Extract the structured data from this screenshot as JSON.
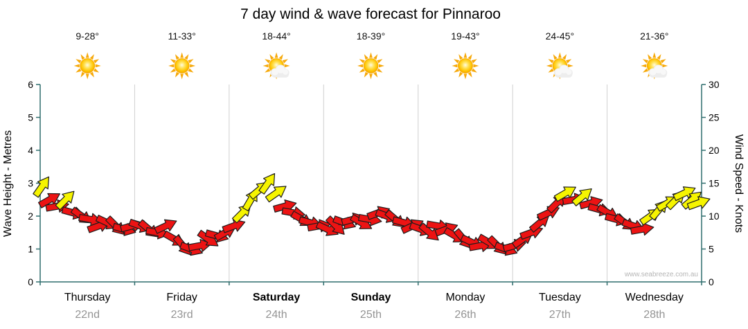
{
  "title": "7 day wind & wave forecast for Pinnaroo",
  "watermark": "www.seabreeze.com.au",
  "colors": {
    "axis": "#2e6d6d",
    "grid": "#cfcfcf",
    "arrow_red": "#ec1313",
    "arrow_yellow": "#f6f400",
    "arrow_outline": "#1c1c1c",
    "sun_ray": "#f6a90b",
    "cloud": "#ededed",
    "date_text": "#949494",
    "watermark_text": "#b5b5b5"
  },
  "axes": {
    "left_label": "Wave Height - Metres",
    "right_label": "Wind Speed - Knots",
    "left_ticks": [
      0,
      1,
      2,
      3,
      4,
      5,
      6
    ],
    "right_ticks": [
      0,
      5,
      10,
      15,
      20,
      25,
      30
    ]
  },
  "days": [
    {
      "name": "Thursday",
      "date": "22nd",
      "temp": "9-28°",
      "icon": "sunny",
      "bold": false
    },
    {
      "name": "Friday",
      "date": "23rd",
      "temp": "11-33°",
      "icon": "sunny",
      "bold": false
    },
    {
      "name": "Saturday",
      "date": "24th",
      "temp": "18-44°",
      "icon": "partly-cloudy",
      "bold": true
    },
    {
      "name": "Sunday",
      "date": "25th",
      "temp": "18-39°",
      "icon": "sunny",
      "bold": true
    },
    {
      "name": "Monday",
      "date": "26th",
      "temp": "19-43°",
      "icon": "sunny",
      "bold": false
    },
    {
      "name": "Tuesday",
      "date": "27th",
      "temp": "24-45°",
      "icon": "partly-cloudy",
      "bold": false
    },
    {
      "name": "Wednesday",
      "date": "28th",
      "temp": "21-36°",
      "icon": "partly-cloudy",
      "bold": false
    }
  ],
  "chart_data": {
    "type": "scatter",
    "marker": "wind-arrow",
    "title": "7 day wind & wave forecast for Pinnaroo",
    "x_categories": [
      "Thursday 22nd",
      "Friday 23rd",
      "Saturday 24th",
      "Sunday 25th",
      "Monday 26th",
      "Tuesday 27th",
      "Wednesday 28th"
    ],
    "xlabel": "",
    "ylabel_left": "Wave Height - Metres",
    "ylabel_right": "Wind Speed - Knots",
    "ylim_left": [
      0,
      6
    ],
    "ylim_right": [
      0,
      30
    ],
    "grid": "vertical-day-boundaries",
    "point_format": [
      "day_offset",
      "wind_knots",
      "arrow_angle_deg",
      "color"
    ],
    "points": [
      [
        0.02,
        14.5,
        -55,
        "yellow"
      ],
      [
        0.1,
        12.5,
        -30,
        "red"
      ],
      [
        0.18,
        11.5,
        -10,
        "red"
      ],
      [
        0.27,
        12.5,
        -45,
        "yellow"
      ],
      [
        0.35,
        10.5,
        15,
        "red"
      ],
      [
        0.44,
        10.0,
        35,
        "red"
      ],
      [
        0.53,
        9.5,
        10,
        "red"
      ],
      [
        0.62,
        8.5,
        -20,
        "red"
      ],
      [
        0.71,
        9.0,
        25,
        "red"
      ],
      [
        0.8,
        8.5,
        45,
        "red"
      ],
      [
        0.89,
        8.0,
        15,
        "red"
      ],
      [
        0.97,
        8.5,
        -15,
        "red"
      ],
      [
        1.06,
        8.5,
        20,
        "red"
      ],
      [
        1.15,
        8.0,
        40,
        "red"
      ],
      [
        1.24,
        7.5,
        10,
        "red"
      ],
      [
        1.33,
        8.5,
        -25,
        "red"
      ],
      [
        1.42,
        6.5,
        30,
        "red"
      ],
      [
        1.51,
        5.5,
        50,
        "red"
      ],
      [
        1.6,
        5.0,
        20,
        "red"
      ],
      [
        1.69,
        5.5,
        -10,
        "red"
      ],
      [
        1.78,
        6.5,
        35,
        "red"
      ],
      [
        1.87,
        7.0,
        15,
        "red"
      ],
      [
        1.96,
        7.5,
        -30,
        "red"
      ],
      [
        2.05,
        8.5,
        -20,
        "red"
      ],
      [
        2.14,
        10.5,
        -45,
        "yellow"
      ],
      [
        2.23,
        12.5,
        -60,
        "yellow"
      ],
      [
        2.32,
        14.0,
        -40,
        "yellow"
      ],
      [
        2.41,
        15.0,
        -55,
        "yellow"
      ],
      [
        2.5,
        13.5,
        -35,
        "yellow"
      ],
      [
        2.59,
        11.5,
        -15,
        "red"
      ],
      [
        2.68,
        10.5,
        10,
        "red"
      ],
      [
        2.77,
        9.5,
        30,
        "red"
      ],
      [
        2.86,
        9.0,
        15,
        "red"
      ],
      [
        2.95,
        8.5,
        -10,
        "red"
      ],
      [
        3.04,
        8.0,
        25,
        "red"
      ],
      [
        3.13,
        8.5,
        45,
        "red"
      ],
      [
        3.22,
        9.0,
        20,
        "red"
      ],
      [
        3.31,
        9.5,
        -15,
        "red"
      ],
      [
        3.4,
        9.0,
        30,
        "red"
      ],
      [
        3.49,
        9.5,
        10,
        "red"
      ],
      [
        3.58,
        10.5,
        -20,
        "red"
      ],
      [
        3.67,
        10.0,
        20,
        "red"
      ],
      [
        3.76,
        9.5,
        40,
        "red"
      ],
      [
        3.85,
        9.0,
        15,
        "red"
      ],
      [
        3.94,
        8.5,
        -25,
        "red"
      ],
      [
        4.03,
        8.0,
        20,
        "red"
      ],
      [
        4.12,
        7.5,
        40,
        "red"
      ],
      [
        4.21,
        8.5,
        10,
        "red"
      ],
      [
        4.3,
        8.0,
        -20,
        "red"
      ],
      [
        4.39,
        7.0,
        30,
        "red"
      ],
      [
        4.48,
        6.5,
        50,
        "red"
      ],
      [
        4.57,
        6.0,
        25,
        "red"
      ],
      [
        4.66,
        5.5,
        -10,
        "red"
      ],
      [
        4.75,
        6.0,
        30,
        "red"
      ],
      [
        4.84,
        5.5,
        45,
        "red"
      ],
      [
        4.93,
        5.0,
        20,
        "red"
      ],
      [
        5.02,
        5.5,
        -15,
        "red"
      ],
      [
        5.11,
        6.5,
        -35,
        "red"
      ],
      [
        5.2,
        7.5,
        -20,
        "red"
      ],
      [
        5.29,
        9.0,
        -40,
        "red"
      ],
      [
        5.38,
        10.5,
        -25,
        "red"
      ],
      [
        5.47,
        12.0,
        -45,
        "red"
      ],
      [
        5.56,
        13.5,
        -30,
        "yellow"
      ],
      [
        5.65,
        12.5,
        -10,
        "red"
      ],
      [
        5.74,
        13.0,
        -40,
        "yellow"
      ],
      [
        5.83,
        12.0,
        -15,
        "red"
      ],
      [
        5.92,
        11.0,
        15,
        "red"
      ],
      [
        6.01,
        10.5,
        30,
        "red"
      ],
      [
        6.1,
        9.5,
        15,
        "red"
      ],
      [
        6.19,
        9.0,
        35,
        "red"
      ],
      [
        6.28,
        8.5,
        20,
        "red"
      ],
      [
        6.37,
        8.0,
        -10,
        "red"
      ],
      [
        6.46,
        10.0,
        -35,
        "yellow"
      ],
      [
        6.55,
        11.0,
        -50,
        "yellow"
      ],
      [
        6.64,
        12.0,
        -30,
        "yellow"
      ],
      [
        6.73,
        12.5,
        -45,
        "yellow"
      ],
      [
        6.82,
        13.5,
        -25,
        "yellow"
      ],
      [
        6.9,
        12.5,
        -40,
        "yellow"
      ],
      [
        6.97,
        12.0,
        -20,
        "yellow"
      ]
    ]
  }
}
